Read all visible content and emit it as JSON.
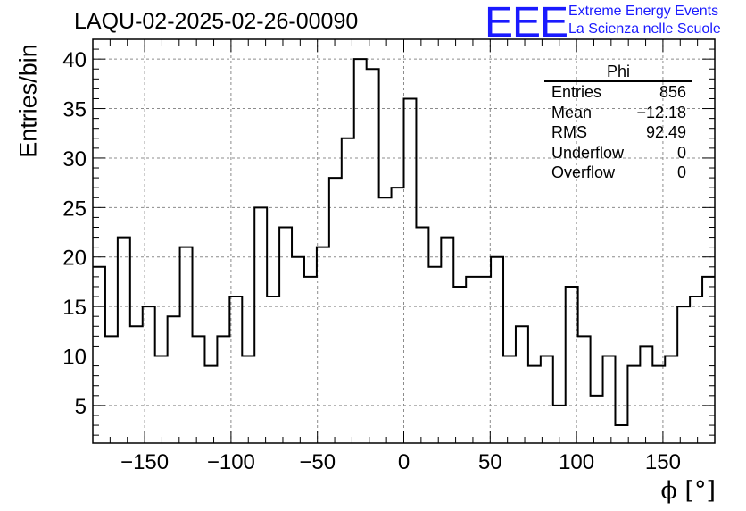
{
  "chart_data": {
    "type": "bar",
    "title": "LAQU-02-2025-02-26-00090",
    "xlabel": "ϕ [°]",
    "ylabel": "Entries/bin",
    "xlim": [
      -180,
      180
    ],
    "ylim": [
      1.2,
      42
    ],
    "bin_width": 7.2,
    "x_ticks": [
      -150,
      -100,
      -50,
      0,
      50,
      100,
      150
    ],
    "x_tick_labels": [
      "−150",
      "−100",
      "−50",
      "0",
      "50",
      "100",
      "150"
    ],
    "y_ticks": [
      5,
      10,
      15,
      20,
      25,
      30,
      35,
      40
    ],
    "y_tick_labels": [
      "5",
      "10",
      "15",
      "20",
      "25",
      "30",
      "35",
      "40"
    ],
    "grid": true,
    "bin_edges_start": -180,
    "values": [
      19,
      12,
      22,
      13,
      15,
      10,
      14,
      21,
      12,
      9,
      12,
      16,
      10,
      25,
      16,
      23,
      20,
      18,
      21,
      28,
      32,
      40,
      39,
      26,
      27,
      36,
      23,
      19,
      22,
      17,
      18,
      18,
      20,
      10,
      13,
      9,
      10,
      5,
      17,
      12,
      6,
      10,
      3,
      9,
      11,
      9,
      10,
      15,
      16,
      18
    ]
  },
  "stats_box": {
    "title": "Phi",
    "rows": [
      {
        "key": "Entries",
        "value": "856"
      },
      {
        "key": "Mean",
        "value": "−12.18"
      },
      {
        "key": "RMS",
        "value": "92.49"
      },
      {
        "key": "Underflow",
        "value": "0"
      },
      {
        "key": "Overflow",
        "value": "0"
      }
    ]
  },
  "logo": {
    "mark": "EEE",
    "line1": "Extreme Energy Events",
    "line2": "La Scienza nelle Scuole",
    "color": "#1a1aff"
  }
}
